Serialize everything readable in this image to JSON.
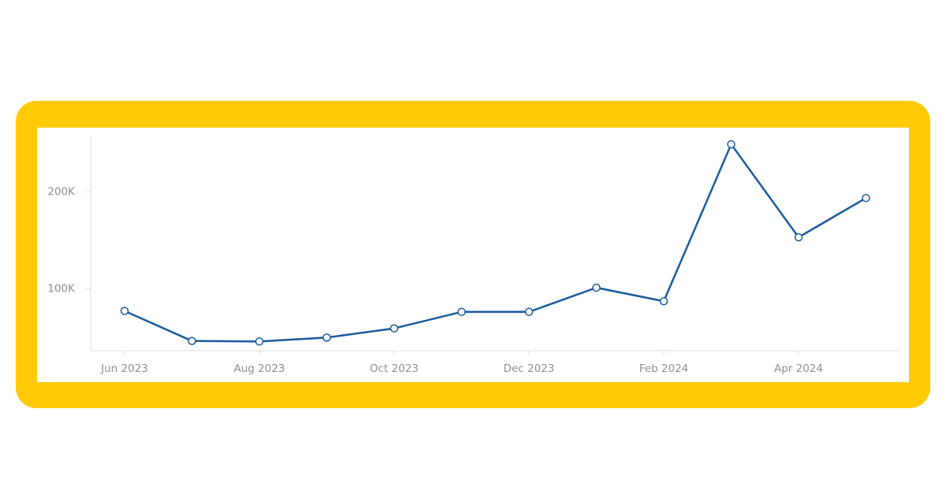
{
  "chart_data": {
    "type": "line",
    "categories": [
      "Jun 2023",
      null,
      "Aug 2023",
      null,
      "Oct 2023",
      null,
      "Dec 2023",
      null,
      "Feb 2024",
      null,
      "Apr 2024",
      null
    ],
    "values": [
      77000,
      46000,
      45500,
      49500,
      59000,
      76000,
      76000,
      101000,
      87000,
      249000,
      153000,
      193500
    ],
    "color": "#1a5b9c",
    "ylim": [
      36000,
      258000
    ],
    "yticks": [
      {
        "value": 100000,
        "label": "100K"
      },
      {
        "value": 200000,
        "label": "200K"
      }
    ],
    "grid": false
  }
}
